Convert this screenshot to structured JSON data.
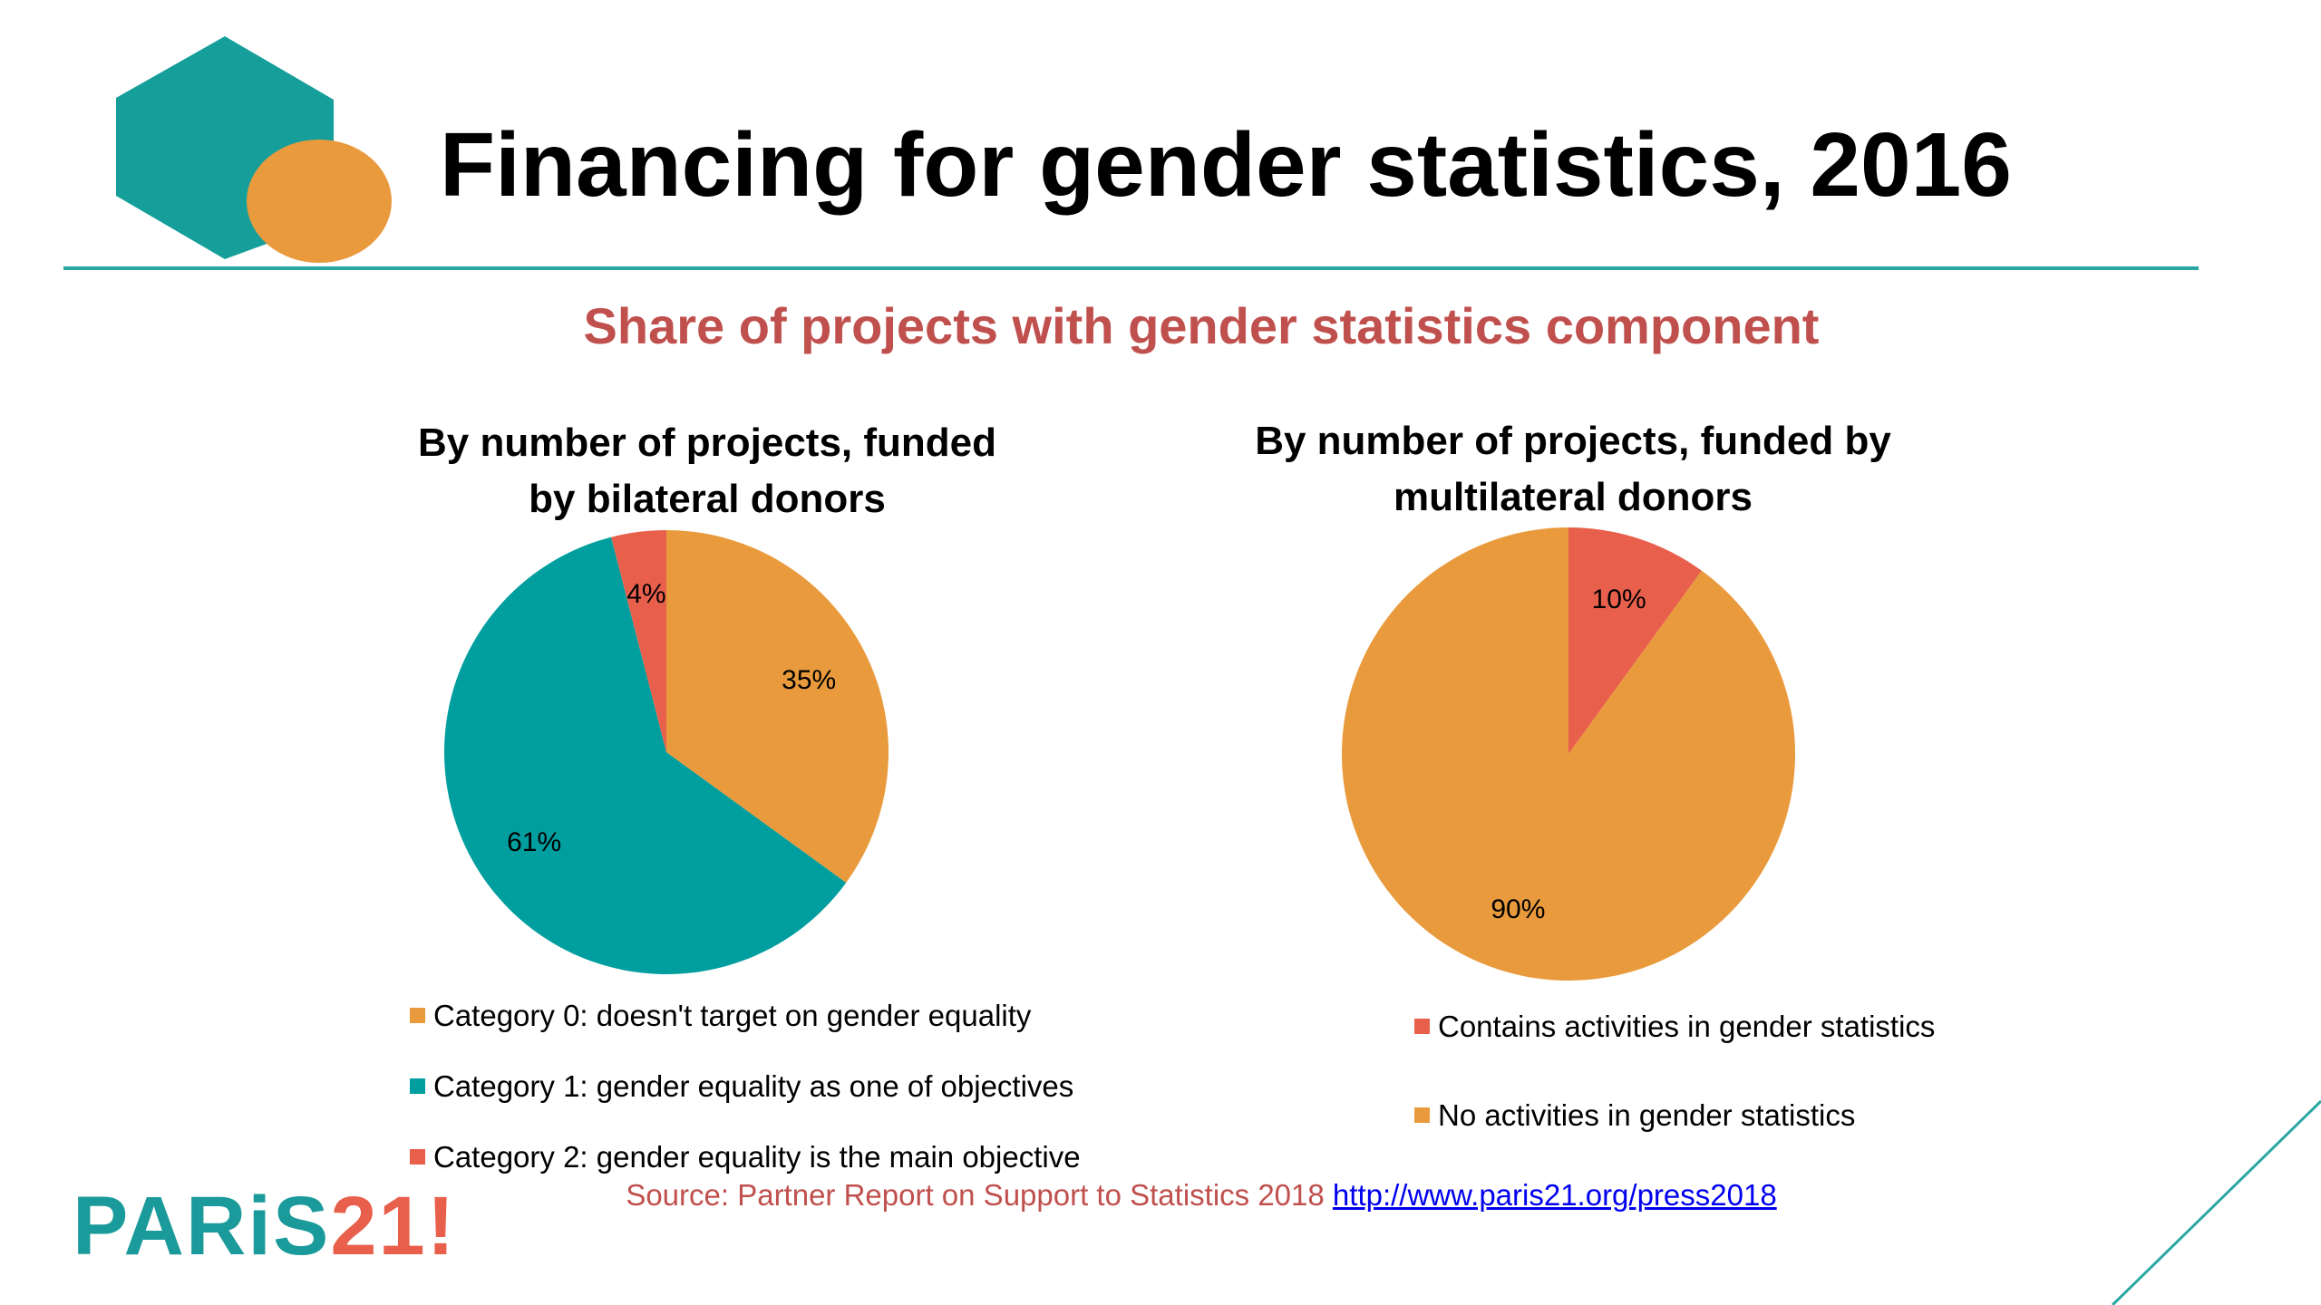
{
  "slide": {
    "title": "Financing for gender statistics, 2016",
    "subtitle": "Share of projects with gender statistics component",
    "source_text": "Source: Partner Report on Support to Statistics 2018",
    "source_link": "http://www.paris21.org/press2018",
    "logo_main": "PARiS",
    "logo_num": "21",
    "logo_mark": "!"
  },
  "colors": {
    "teal": "#009e9e",
    "orange": "#e99a3c",
    "coral": "#e8604c",
    "subtitle_red": "#c0504d"
  },
  "chart_data": [
    {
      "type": "pie",
      "title_line1": "By number of projects, funded",
      "title_line2": "by bilateral donors",
      "slices": [
        {
          "label": "Category 0: doesn't target on gender equality",
          "value": 35,
          "value_label": "35%",
          "color": "#e99a3c"
        },
        {
          "label": "Category 1: gender equality as one of objectives",
          "value": 61,
          "value_label": "61%",
          "color": "#009e9e"
        },
        {
          "label": "Category 2: gender equality is the main objective",
          "value": 4,
          "value_label": "4%",
          "color": "#e8604c"
        }
      ],
      "legend_position": "bottom"
    },
    {
      "type": "pie",
      "title_line1": "By number of projects, funded by",
      "title_line2": "multilateral donors",
      "slices": [
        {
          "label": "Contains activities in gender statistics",
          "value": 10,
          "value_label": "10%",
          "color": "#e8604c"
        },
        {
          "label": "No activities in gender statistics",
          "value": 90,
          "value_label": "90%",
          "color": "#e99a3c"
        }
      ],
      "legend_position": "bottom"
    }
  ]
}
